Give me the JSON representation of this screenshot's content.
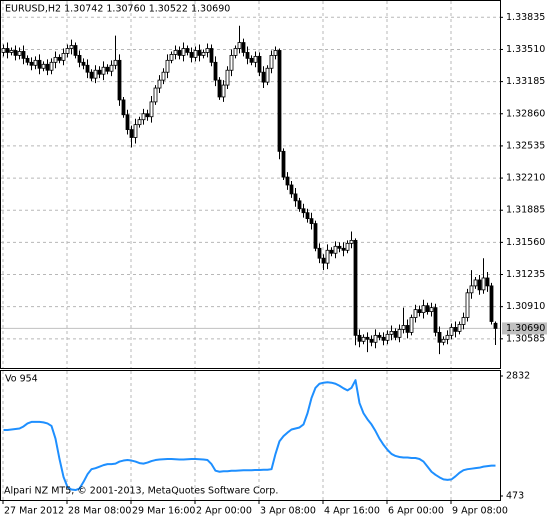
{
  "chart_data": [
    {
      "type": "candlestick",
      "title": "EURUSD,H2  1.30742 1.30760 1.30522 1.30690",
      "categories": [
        "27 Mar 2012",
        null,
        null,
        null,
        null,
        null,
        null,
        null,
        null,
        null,
        null,
        null,
        null,
        null,
        null,
        null,
        "28 Mar 08:00",
        null,
        null,
        null,
        null,
        null,
        null,
        null,
        null,
        null,
        null,
        null,
        null,
        null,
        null,
        null,
        "29 Mar 16:00",
        null,
        null,
        null,
        null,
        null,
        null,
        null,
        null,
        null,
        null,
        null,
        null,
        null,
        null,
        null,
        "2 Apr 00:00",
        null,
        null,
        null,
        null,
        null,
        null,
        null,
        null,
        null,
        null,
        null,
        null,
        null,
        null,
        null,
        "3 Apr 08:00",
        null,
        null,
        null,
        null,
        null,
        null,
        null,
        null,
        null,
        null,
        null,
        null,
        null,
        null,
        null,
        "4 Apr 16:00",
        null,
        null,
        null,
        null,
        null,
        null,
        null,
        null,
        null,
        null,
        null,
        null,
        null,
        null,
        null,
        "6 Apr 00:00",
        null,
        null,
        null,
        null,
        null,
        null,
        null,
        null,
        null,
        null,
        null,
        null,
        null,
        null,
        null,
        "9 Apr 08:00",
        null,
        null,
        null,
        null,
        null,
        null,
        null,
        null,
        null,
        null,
        null
      ],
      "open": [
        1.3348,
        1.3352,
        1.3348,
        1.335,
        1.3345,
        1.3349,
        1.3342,
        1.3338,
        1.3335,
        1.334,
        1.3332,
        1.3336,
        1.333,
        1.3338,
        1.3343,
        1.334,
        1.3347,
        1.3352,
        1.3355,
        1.3345,
        1.3338,
        1.3335,
        1.3328,
        1.3322,
        1.333,
        1.3326,
        1.3333,
        1.3329,
        1.3335,
        1.334,
        1.33,
        1.3285,
        1.327,
        1.3262,
        1.3275,
        1.328,
        1.3286,
        1.3283,
        1.3298,
        1.3312,
        1.332,
        1.3328,
        1.334,
        1.3346,
        1.335,
        1.3345,
        1.3352,
        1.3348,
        1.3343,
        1.335,
        1.3345,
        1.3348,
        1.3352,
        1.3338,
        1.332,
        1.3303,
        1.3315,
        1.333,
        1.3345,
        1.3352,
        1.3358,
        1.3348,
        1.3342,
        1.3338,
        1.3344,
        1.3328,
        1.3318,
        1.3332,
        1.3345,
        1.335,
        1.3248,
        1.3222,
        1.3214,
        1.3205,
        1.3198,
        1.319,
        1.3186,
        1.318,
        1.3175,
        1.315,
        1.314,
        1.3135,
        1.3148,
        1.3145,
        1.3152,
        1.315,
        1.3148,
        1.3155,
        1.3158,
        1.3062,
        1.3056,
        1.306,
        1.3058,
        1.3055,
        1.3062,
        1.306,
        1.3057,
        1.3063,
        1.3066,
        1.306,
        1.3068,
        1.3072,
        1.3065,
        1.308,
        1.3088,
        1.3085,
        1.3092,
        1.3086,
        1.309,
        1.3065,
        1.3055,
        1.3058,
        1.3062,
        1.307,
        1.3066,
        1.3073,
        1.308,
        1.3105,
        1.3112,
        1.3118,
        1.3108,
        1.312,
        1.3112,
        1.30742
      ],
      "high": [
        1.3356,
        1.3358,
        1.3353,
        1.3355,
        1.3353,
        1.3355,
        1.3345,
        1.3343,
        1.3344,
        1.3346,
        1.3339,
        1.3341,
        1.3342,
        1.3349,
        1.3346,
        1.3352,
        1.3356,
        1.3361,
        1.3358,
        1.335,
        1.3342,
        1.3341,
        1.3331,
        1.3335,
        1.3334,
        1.3339,
        1.3336,
        1.334,
        1.3365,
        1.3346,
        1.3303,
        1.329,
        1.3274,
        1.3281,
        1.3283,
        1.3291,
        1.329,
        1.3304,
        1.3315,
        1.3325,
        1.3332,
        1.3346,
        1.3349,
        1.3355,
        1.3354,
        1.3358,
        1.3355,
        1.3353,
        1.3354,
        1.3356,
        1.3351,
        1.3357,
        1.3356,
        1.3344,
        1.3323,
        1.332,
        1.3334,
        1.3351,
        1.3355,
        1.3375,
        1.3362,
        1.3354,
        1.3345,
        1.3349,
        1.3348,
        1.3334,
        1.3335,
        1.335,
        1.3354,
        1.3352,
        1.3251,
        1.3227,
        1.3218,
        1.3211,
        1.3201,
        1.3195,
        1.319,
        1.3186,
        1.3178,
        1.3155,
        1.3144,
        1.3154,
        1.3151,
        1.3157,
        1.3156,
        1.3156,
        1.3158,
        1.3167,
        1.316,
        1.3068,
        1.3063,
        1.3065,
        1.3062,
        1.3068,
        1.3065,
        1.3065,
        1.3067,
        1.3072,
        1.3069,
        1.3073,
        1.309,
        1.3078,
        1.3083,
        1.3093,
        1.3092,
        1.3098,
        1.3095,
        1.3095,
        1.3094,
        1.3071,
        1.3061,
        1.3067,
        1.3074,
        1.3076,
        1.3076,
        1.3085,
        1.3109,
        1.3128,
        1.3121,
        1.3123,
        1.314,
        1.3126,
        1.3115,
        1.3076
      ],
      "low": [
        1.3344,
        1.3342,
        1.3345,
        1.334,
        1.3341,
        1.3336,
        1.3335,
        1.333,
        1.3331,
        1.3326,
        1.3329,
        1.3325,
        1.3326,
        1.3332,
        1.3337,
        1.3335,
        1.3343,
        1.3346,
        1.3342,
        1.3333,
        1.3331,
        1.3322,
        1.3319,
        1.3317,
        1.3322,
        1.332,
        1.3326,
        1.3324,
        1.3331,
        1.3294,
        1.3282,
        1.3265,
        1.3252,
        1.3256,
        1.3272,
        1.3275,
        1.3279,
        1.3277,
        1.3295,
        1.3307,
        1.3316,
        1.3322,
        1.3337,
        1.3341,
        1.3341,
        1.3339,
        1.3345,
        1.3338,
        1.3339,
        1.3339,
        1.3342,
        1.3343,
        1.3334,
        1.3314,
        1.33,
        1.3298,
        1.3311,
        1.3324,
        1.3342,
        1.3347,
        1.3344,
        1.3336,
        1.3335,
        1.3333,
        1.3324,
        1.3312,
        1.3315,
        1.3327,
        1.3341,
        1.324,
        1.3219,
        1.3209,
        1.3201,
        1.3192,
        1.3187,
        1.3181,
        1.3176,
        1.3169,
        1.3147,
        1.3135,
        1.3128,
        1.3129,
        1.3142,
        1.314,
        1.3146,
        1.3142,
        1.3145,
        1.315,
        1.3052,
        1.305,
        1.3053,
        1.3045,
        1.3051,
        1.3049,
        1.3057,
        1.3052,
        1.3053,
        1.3057,
        1.3057,
        1.3055,
        1.3064,
        1.3059,
        1.3062,
        1.3075,
        1.3081,
        1.3079,
        1.3083,
        1.3081,
        1.3061,
        1.3043,
        1.3052,
        1.3053,
        1.3058,
        1.306,
        1.3063,
        1.3068,
        1.3076,
        1.3099,
        1.3109,
        1.3103,
        1.3104,
        1.3106,
        1.3073,
        1.30522
      ],
      "close": [
        1.3352,
        1.3348,
        1.335,
        1.3345,
        1.3349,
        1.3342,
        1.3338,
        1.3335,
        1.334,
        1.3332,
        1.3336,
        1.333,
        1.3338,
        1.3343,
        1.334,
        1.3347,
        1.3352,
        1.3355,
        1.3345,
        1.3338,
        1.3335,
        1.3328,
        1.3322,
        1.333,
        1.3326,
        1.3333,
        1.3329,
        1.3335,
        1.334,
        1.33,
        1.3285,
        1.327,
        1.3262,
        1.3275,
        1.328,
        1.3286,
        1.3283,
        1.3298,
        1.3312,
        1.332,
        1.3328,
        1.334,
        1.3346,
        1.335,
        1.3345,
        1.3352,
        1.3348,
        1.3343,
        1.335,
        1.3345,
        1.3348,
        1.3352,
        1.3338,
        1.332,
        1.3303,
        1.3315,
        1.333,
        1.3345,
        1.3352,
        1.3358,
        1.3348,
        1.3342,
        1.3338,
        1.3344,
        1.3328,
        1.3318,
        1.3332,
        1.3345,
        1.335,
        1.3248,
        1.3222,
        1.3214,
        1.3205,
        1.3198,
        1.319,
        1.3186,
        1.318,
        1.3175,
        1.315,
        1.314,
        1.3135,
        1.3148,
        1.3145,
        1.3152,
        1.315,
        1.3148,
        1.3155,
        1.3158,
        1.3062,
        1.3056,
        1.306,
        1.3058,
        1.3055,
        1.3062,
        1.306,
        1.3057,
        1.3063,
        1.3066,
        1.306,
        1.3068,
        1.3072,
        1.3065,
        1.308,
        1.3088,
        1.3085,
        1.3092,
        1.3086,
        1.309,
        1.3065,
        1.3055,
        1.3058,
        1.3062,
        1.307,
        1.3066,
        1.3073,
        1.308,
        1.3105,
        1.3112,
        1.3118,
        1.3108,
        1.312,
        1.3112,
        1.3076,
        1.3069
      ],
      "ylim": [
        1.3029,
        1.3401
      ],
      "yticks": [
        1.33835,
        {
          "value": 1.3351,
          "label": "1.33510"
        },
        1.33185,
        {
          "value": 1.3286,
          "label": "1.32860"
        },
        1.32535,
        {
          "value": 1.3221,
          "label": "1.32210"
        },
        1.31885,
        {
          "value": 1.3156,
          "label": "1.31560"
        },
        1.31235,
        {
          "value": 1.3091,
          "label": "1.30910"
        },
        1.30585
      ],
      "current_price": {
        "value": 1.3069,
        "label": "1.30690"
      },
      "grid": true
    },
    {
      "type": "line",
      "label": "Vo 954",
      "color": "#1e8fff",
      "values": [
        1770,
        1770,
        1780,
        1790,
        1800,
        1840,
        1900,
        1930,
        1930,
        1930,
        1920,
        1900,
        1850,
        1600,
        1200,
        850,
        650,
        600,
        590,
        620,
        750,
        900,
        1000,
        1020,
        1050,
        1080,
        1100,
        1100,
        1110,
        1150,
        1170,
        1180,
        1170,
        1150,
        1120,
        1110,
        1130,
        1160,
        1180,
        1190,
        1195,
        1200,
        1200,
        1195,
        1190,
        1190,
        1195,
        1200,
        1200,
        1195,
        1190,
        1180,
        1100,
        970,
        950,
        960,
        960,
        970,
        970,
        975,
        980,
        980,
        980,
        985,
        985,
        990,
        990,
        1000,
        1300,
        1550,
        1650,
        1720,
        1780,
        1800,
        1820,
        1880,
        2100,
        2400,
        2600,
        2680,
        2700,
        2710,
        2700,
        2680,
        2640,
        2590,
        2550,
        2600,
        2750,
        2300,
        2100,
        1980,
        1880,
        1750,
        1600,
        1480,
        1380,
        1300,
        1260,
        1240,
        1230,
        1230,
        1220,
        1220,
        1200,
        1150,
        1050,
        950,
        890,
        840,
        800,
        790,
        800,
        860,
        930,
        980,
        1000,
        1010,
        1020,
        1030,
        1050,
        1060,
        1070,
        1070
      ],
      "ylim": [
        473,
        2832
      ],
      "yticks": [
        473,
        2832
      ]
    }
  ],
  "footer": "Alpari NZ MT5, © 2001-2013, MetaQuotes Software Corp."
}
